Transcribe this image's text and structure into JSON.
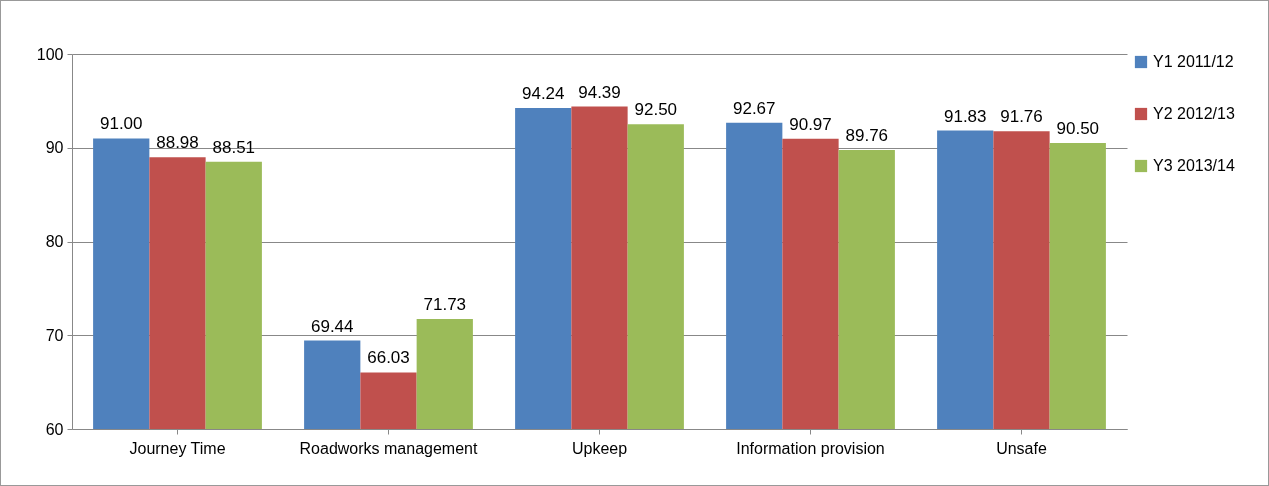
{
  "chart_data": {
    "type": "bar",
    "categories": [
      "Journey Time",
      "Roadworks management",
      "Upkeep",
      "Information provision",
      "Unsafe"
    ],
    "series": [
      {
        "name": "Y1 2011/12",
        "color": "#4f81bd",
        "values": [
          91.0,
          69.44,
          94.24,
          92.67,
          91.83
        ],
        "value_labels": [
          "91.00",
          "69.44",
          "94.24",
          "92.67",
          "91.83"
        ]
      },
      {
        "name": "Y2 2012/13",
        "color": "#c0504d",
        "values": [
          88.98,
          66.03,
          94.39,
          90.97,
          91.76
        ],
        "value_labels": [
          "88.98",
          "66.03",
          "94.39",
          "90.97",
          "91.76"
        ]
      },
      {
        "name": "Y3 2013/14",
        "color": "#9bbb59",
        "values": [
          88.51,
          71.73,
          92.5,
          89.76,
          90.5
        ],
        "value_labels": [
          "88.51",
          "71.73",
          "92.50",
          "89.76",
          "90.50"
        ]
      }
    ],
    "ylim": [
      60,
      100
    ],
    "yticks": [
      60,
      70,
      80,
      90,
      100
    ],
    "grid": "y",
    "legend": "right"
  }
}
